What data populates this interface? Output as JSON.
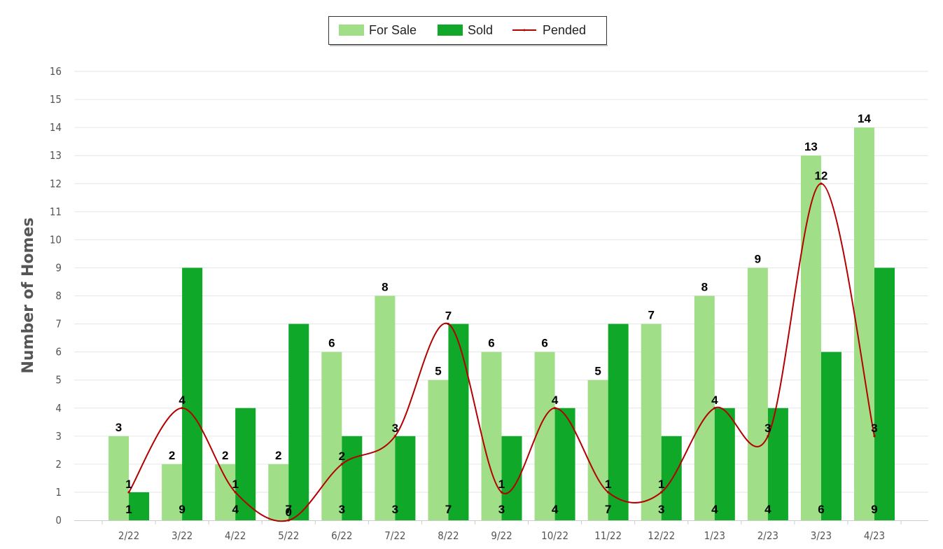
{
  "chart_data": {
    "type": "bar",
    "ylabel": "Number of Homes",
    "xlabel": "",
    "ylim": [
      0,
      16
    ],
    "yticks": [
      "0",
      "1",
      "2",
      "3",
      "4",
      "5",
      "6",
      "7",
      "8",
      "9",
      "10",
      "11",
      "12",
      "13",
      "14",
      "15",
      "16"
    ],
    "grid": true,
    "legend_position": "top-center",
    "categories": [
      "2/22",
      "3/22",
      "4/22",
      "5/22",
      "6/22",
      "7/22",
      "8/22",
      "9/22",
      "10/22",
      "11/22",
      "12/22",
      "1/23",
      "2/23",
      "3/23",
      "4/23"
    ],
    "series": [
      {
        "name": "For Sale",
        "kind": "bar",
        "color": "#a0df88",
        "values": [
          3,
          2,
          2,
          2,
          6,
          8,
          5,
          6,
          6,
          5,
          7,
          8,
          9,
          13,
          14
        ]
      },
      {
        "name": "Sold",
        "kind": "bar",
        "color": "#0fa829",
        "values": [
          1,
          9,
          4,
          7,
          3,
          3,
          7,
          3,
          4,
          7,
          3,
          4,
          4,
          6,
          9
        ]
      },
      {
        "name": "Pended",
        "kind": "line",
        "color": "#b30000",
        "values": [
          1,
          4,
          1,
          0,
          2,
          3,
          7,
          1,
          4,
          1,
          1,
          4,
          3,
          12,
          3
        ]
      }
    ]
  }
}
